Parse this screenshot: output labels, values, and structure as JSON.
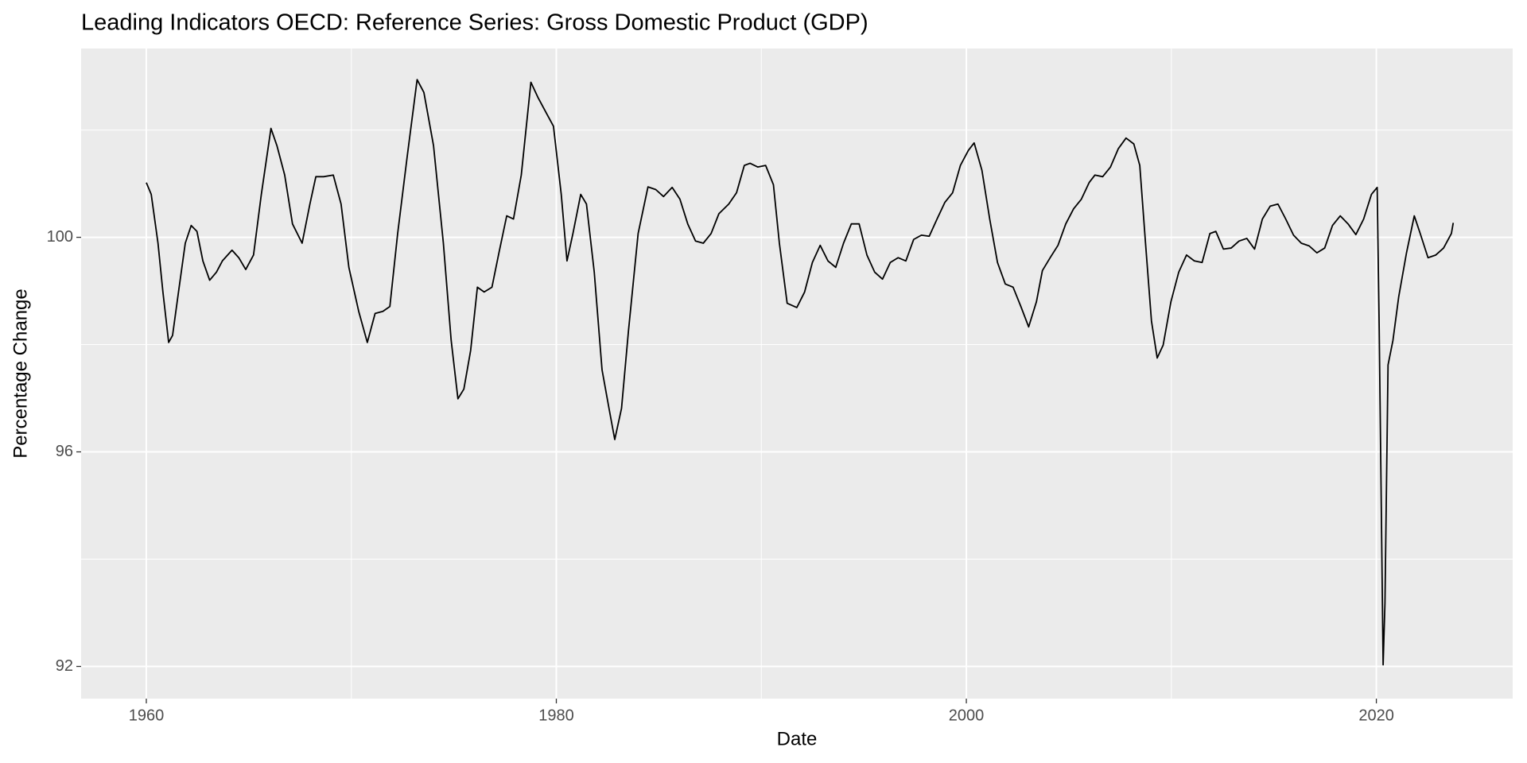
{
  "chart_data": {
    "type": "line",
    "title": "Leading Indicators OECD: Reference Series: Gross Domestic Product (GDP)",
    "xlabel": "Date",
    "ylabel": "Percentage Change",
    "color": "#000000",
    "grid": true,
    "xlim": [
      1956.82,
      2026.65
    ],
    "xticks": [
      1960,
      1980,
      2000,
      2020
    ],
    "ylim": [
      91.4,
      103.52
    ],
    "yticks": [
      92,
      96,
      100
    ],
    "x": [
      1960.0,
      1960.24,
      1960.57,
      1960.81,
      1961.09,
      1961.28,
      1961.57,
      1961.9,
      1962.19,
      1962.47,
      1962.76,
      1963.09,
      1963.42,
      1963.71,
      1964.18,
      1964.51,
      1964.85,
      1965.23,
      1965.61,
      1966.08,
      1966.37,
      1966.75,
      1967.13,
      1967.6,
      1967.98,
      1968.27,
      1968.65,
      1969.12,
      1969.5,
      1969.88,
      1970.36,
      1970.78,
      1971.16,
      1971.54,
      1971.88,
      1972.26,
      1972.73,
      1973.21,
      1973.54,
      1974.01,
      1974.49,
      1974.87,
      1975.2,
      1975.49,
      1975.82,
      1976.15,
      1976.48,
      1976.86,
      1977.2,
      1977.58,
      1977.91,
      1978.29,
      1978.76,
      1979.1,
      1979.48,
      1979.86,
      1980.24,
      1980.52,
      1980.81,
      1981.19,
      1981.47,
      1981.85,
      1982.23,
      1982.57,
      1982.85,
      1983.18,
      1983.52,
      1983.99,
      1984.47,
      1984.85,
      1985.23,
      1985.65,
      1986.03,
      1986.41,
      1986.79,
      1987.17,
      1987.55,
      1987.93,
      1988.41,
      1988.79,
      1989.17,
      1989.45,
      1989.83,
      1990.21,
      1990.59,
      1990.88,
      1991.26,
      1991.73,
      1992.11,
      1992.49,
      1992.87,
      1993.25,
      1993.63,
      1994.01,
      1994.39,
      1994.77,
      1995.15,
      1995.53,
      1995.91,
      1996.29,
      1996.67,
      1997.05,
      1997.43,
      1997.81,
      1998.19,
      1998.57,
      1998.95,
      1999.33,
      1999.71,
      2000.1,
      2000.38,
      2000.76,
      2001.14,
      2001.52,
      2001.9,
      2002.28,
      2002.66,
      2003.04,
      2003.42,
      2003.71,
      2004.09,
      2004.47,
      2004.85,
      2005.23,
      2005.61,
      2005.99,
      2006.27,
      2006.65,
      2007.03,
      2007.41,
      2007.79,
      2008.17,
      2008.46,
      2008.74,
      2009.03,
      2009.31,
      2009.6,
      2009.98,
      2010.36,
      2010.74,
      2011.12,
      2011.5,
      2011.88,
      2012.17,
      2012.54,
      2012.92,
      2013.3,
      2013.68,
      2014.06,
      2014.44,
      2014.82,
      2015.2,
      2015.58,
      2015.96,
      2016.34,
      2016.72,
      2017.1,
      2017.48,
      2017.86,
      2018.24,
      2018.62,
      2019.0,
      2019.38,
      2019.76,
      2020.04,
      2020.14,
      2020.23,
      2020.33,
      2020.42,
      2020.57,
      2020.81,
      2021.09,
      2021.47,
      2021.85,
      2022.14,
      2022.52,
      2022.9,
      2023.28,
      2023.66,
      2023.75
    ],
    "values": [
      101.02,
      100.8,
      99.89,
      98.98,
      98.04,
      98.17,
      98.98,
      99.89,
      100.22,
      100.11,
      99.56,
      99.2,
      99.35,
      99.56,
      99.76,
      99.62,
      99.4,
      99.67,
      100.8,
      102.03,
      101.71,
      101.16,
      100.25,
      99.89,
      100.62,
      101.13,
      101.13,
      101.16,
      100.62,
      99.44,
      98.62,
      98.04,
      98.58,
      98.62,
      98.71,
      100.07,
      101.52,
      102.94,
      102.7,
      101.71,
      99.89,
      98.08,
      96.99,
      97.17,
      97.89,
      99.07,
      98.98,
      99.07,
      99.71,
      100.4,
      100.34,
      101.16,
      102.89,
      102.61,
      102.34,
      102.07,
      100.8,
      99.56,
      100.07,
      100.8,
      100.62,
      99.35,
      97.53,
      96.81,
      96.23,
      96.81,
      98.26,
      100.07,
      100.94,
      100.89,
      100.76,
      100.93,
      100.71,
      100.25,
      99.93,
      99.89,
      100.07,
      100.44,
      100.62,
      100.83,
      101.34,
      101.38,
      101.31,
      101.34,
      100.98,
      99.89,
      98.77,
      98.69,
      98.98,
      99.53,
      99.85,
      99.56,
      99.44,
      99.89,
      100.25,
      100.25,
      99.67,
      99.35,
      99.22,
      99.53,
      99.62,
      99.56,
      99.96,
      100.04,
      100.02,
      100.34,
      100.65,
      100.83,
      101.34,
      101.62,
      101.76,
      101.25,
      100.34,
      99.53,
      99.13,
      99.07,
      98.71,
      98.33,
      98.8,
      99.38,
      99.62,
      99.85,
      100.25,
      100.53,
      100.71,
      101.02,
      101.16,
      101.13,
      101.31,
      101.65,
      101.85,
      101.74,
      101.34,
      99.89,
      98.44,
      97.75,
      97.99,
      98.8,
      99.35,
      99.67,
      99.56,
      99.53,
      100.07,
      100.11,
      99.78,
      99.8,
      99.93,
      99.98,
      99.78,
      100.34,
      100.58,
      100.62,
      100.34,
      100.04,
      99.89,
      99.84,
      99.71,
      99.8,
      100.22,
      100.4,
      100.25,
      100.05,
      100.34,
      100.8,
      100.93,
      98.26,
      95.35,
      92.03,
      93.18,
      97.62,
      98.08,
      98.89,
      99.71,
      100.4,
      100.07,
      99.62,
      99.67,
      99.8,
      100.07,
      100.27
    ]
  }
}
